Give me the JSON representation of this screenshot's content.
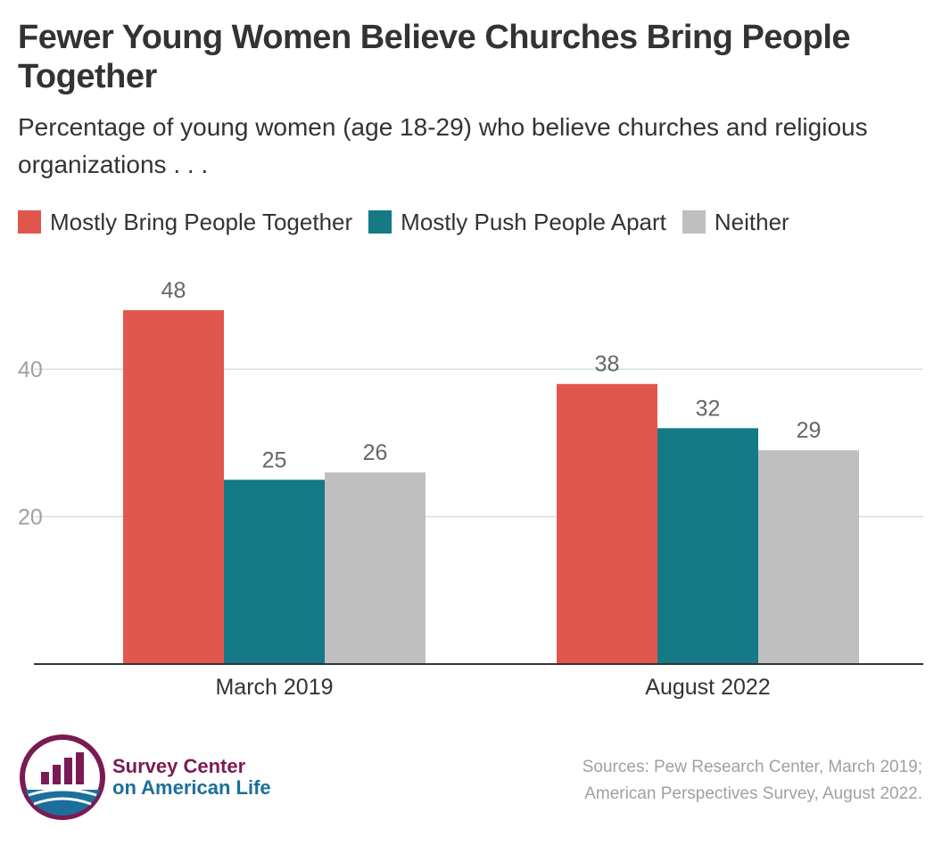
{
  "title": "Fewer Young Women Believe Churches Bring People Together",
  "subtitle": "Percentage of young women (age 18-29) who believe churches and religious organizations . . .",
  "colors": {
    "together": "#e2574c",
    "apart": "#137a86",
    "neither": "#bfbfbf",
    "grid": "#dddddd",
    "axis": "#333333",
    "tick_text": "#a0a0a0",
    "value_text": "#666666"
  },
  "chart_data": {
    "type": "bar",
    "categories": [
      "March 2019",
      "August 2022"
    ],
    "series": [
      {
        "name": "Mostly Bring People Together",
        "color_key": "together",
        "values": [
          48,
          38
        ]
      },
      {
        "name": "Mostly Push People Apart",
        "color_key": "apart",
        "values": [
          25,
          32
        ]
      },
      {
        "name": "Neither",
        "color_key": "neither",
        "values": [
          26,
          29
        ]
      }
    ],
    "ylim": [
      0,
      50
    ],
    "yticks": [
      20,
      40
    ],
    "grid": true,
    "legend_position": "top-left"
  },
  "footer": {
    "brand_line1": "Survey Center",
    "brand_line2": "on American Life",
    "sources_line1": "Sources: Pew Research Center, March 2019;",
    "sources_line2": "American Perspectives Survey, August 2022."
  }
}
